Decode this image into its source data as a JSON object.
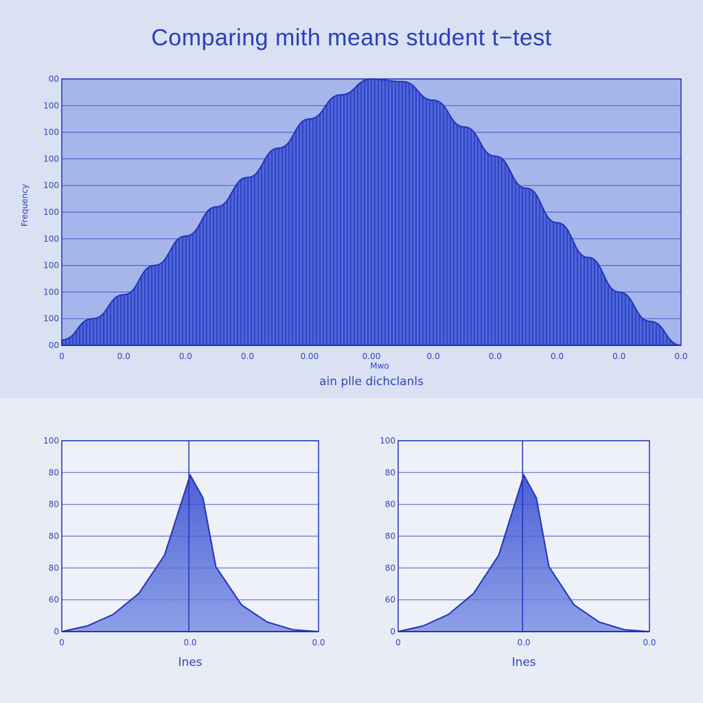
{
  "title": "Comparing mith means student t−test",
  "colors": {
    "primary": "#2233bb",
    "fill": "#4a63d8",
    "panel": "#d9e1f3",
    "background": "#e8ecf4"
  },
  "chart_data": [
    {
      "type": "area",
      "title": "Comparing mith means student t−test",
      "xlabel": "ain plle dichclanls",
      "xlabel_sub": "Mwo",
      "ylabel": "Frequency",
      "x_ticks": [
        "0",
        "0.0",
        "0.0",
        "0.0",
        "0.00",
        "0.00",
        "0.0",
        "0.0",
        "0.0",
        "0.0",
        "0.0"
      ],
      "y_ticks": [
        "00",
        "100",
        "100",
        "100",
        "100",
        "100",
        "100",
        "100",
        "100",
        "100",
        "00"
      ],
      "shape": "symmetric bell curve",
      "x": [
        0,
        0.05,
        0.1,
        0.15,
        0.2,
        0.25,
        0.3,
        0.35,
        0.4,
        0.45,
        0.5,
        0.55,
        0.6,
        0.65,
        0.7,
        0.75,
        0.8,
        0.85,
        0.9,
        0.95,
        1.0
      ],
      "y": [
        0.02,
        0.1,
        0.19,
        0.3,
        0.41,
        0.52,
        0.63,
        0.74,
        0.85,
        0.94,
        1.0,
        0.99,
        0.92,
        0.82,
        0.71,
        0.59,
        0.46,
        0.33,
        0.2,
        0.09,
        0.0
      ],
      "grid": true
    },
    {
      "type": "area",
      "xlabel": "Ines",
      "x_ticks": [
        "0",
        "0.0",
        "0.0"
      ],
      "y_ticks": [
        "100",
        "80",
        "80",
        "80",
        "80",
        "60",
        "0"
      ],
      "shape": "peaked (cusp) distribution",
      "x": [
        0,
        0.1,
        0.2,
        0.3,
        0.4,
        0.5,
        0.55,
        0.6,
        0.7,
        0.8,
        0.9,
        1.0
      ],
      "y": [
        0.0,
        0.03,
        0.09,
        0.2,
        0.4,
        0.82,
        0.7,
        0.34,
        0.14,
        0.05,
        0.01,
        0.0
      ],
      "grid": true
    },
    {
      "type": "area",
      "xlabel": "Ines",
      "x_ticks": [
        "0",
        "0.0",
        "0.0"
      ],
      "y_ticks": [
        "100",
        "80",
        "80",
        "80",
        "80",
        "60",
        "0"
      ],
      "shape": "peaked (cusp) distribution",
      "x": [
        0,
        0.1,
        0.2,
        0.3,
        0.4,
        0.5,
        0.55,
        0.6,
        0.7,
        0.8,
        0.9,
        1.0
      ],
      "y": [
        0.0,
        0.03,
        0.09,
        0.2,
        0.4,
        0.82,
        0.7,
        0.34,
        0.14,
        0.05,
        0.01,
        0.0
      ],
      "grid": true
    }
  ]
}
